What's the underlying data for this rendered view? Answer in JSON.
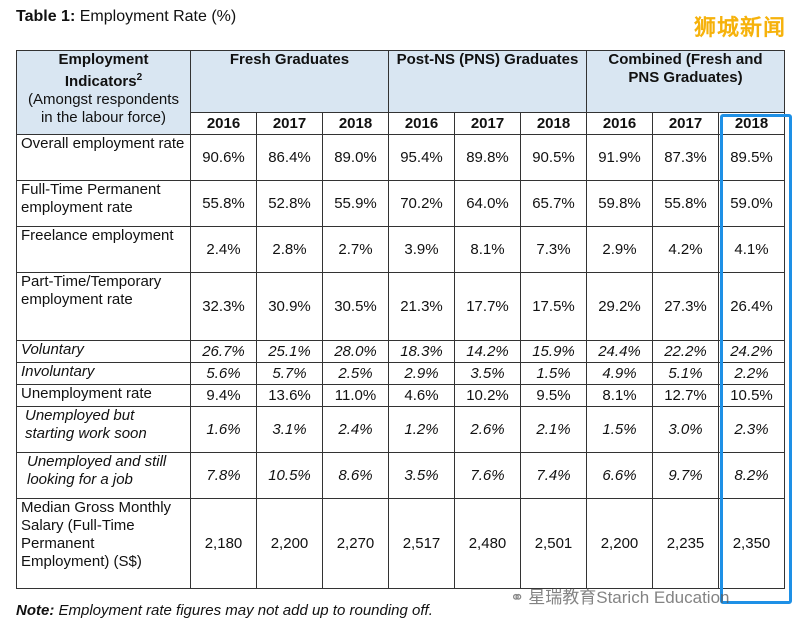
{
  "title": {
    "prefix": "Table 1:",
    "text": "Employment Rate (%)"
  },
  "watermark_top": "狮城新闻",
  "watermark_bottom": "星瑞教育Starich Education",
  "header": {
    "indicator_main": "Employment Indicators",
    "indicator_sup": "2",
    "indicator_sub": "(Amongst respondents in the labour force)",
    "groups": [
      "Fresh Graduates",
      "Post-NS (PNS) Graduates",
      "Combined (Fresh and PNS Graduates)"
    ],
    "years": [
      "2016",
      "2017",
      "2018",
      "2016",
      "2017",
      "2018",
      "2016",
      "2017",
      "2018"
    ]
  },
  "rows": [
    {
      "label": "Overall employment rate",
      "italic": false,
      "values": [
        "90.6%",
        "86.4%",
        "89.0%",
        "95.4%",
        "89.8%",
        "90.5%",
        "91.9%",
        "87.3%",
        "89.5%"
      ]
    },
    {
      "label": "Full-Time Permanent employment rate",
      "italic": false,
      "values": [
        "55.8%",
        "52.8%",
        "55.9%",
        "70.2%",
        "64.0%",
        "65.7%",
        "59.8%",
        "55.8%",
        "59.0%"
      ]
    },
    {
      "label": "Freelance employment",
      "italic": false,
      "values": [
        "2.4%",
        "2.8%",
        "2.7%",
        "3.9%",
        "8.1%",
        "7.3%",
        "2.9%",
        "4.2%",
        "4.1%"
      ]
    },
    {
      "label": "Part-Time/Temporary employment rate",
      "italic": false,
      "values": [
        "32.3%",
        "30.9%",
        "30.5%",
        "21.3%",
        "17.7%",
        "17.5%",
        "29.2%",
        "27.3%",
        "26.4%"
      ]
    },
    {
      "label": "Voluntary",
      "italic": true,
      "values": [
        "26.7%",
        "25.1%",
        "28.0%",
        "18.3%",
        "14.2%",
        "15.9%",
        "24.4%",
        "22.2%",
        "24.2%"
      ]
    },
    {
      "label": "Involuntary",
      "italic": true,
      "values": [
        "5.6%",
        "5.7%",
        "2.5%",
        "2.9%",
        "3.5%",
        "1.5%",
        "4.9%",
        "5.1%",
        "2.2%"
      ]
    },
    {
      "label": "Unemployment rate",
      "italic": false,
      "values": [
        "9.4%",
        "13.6%",
        "11.0%",
        "4.6%",
        "10.2%",
        "9.5%",
        "8.1%",
        "12.7%",
        "10.5%"
      ]
    },
    {
      "label": "Unemployed but starting work soon",
      "italic": true,
      "values": [
        "1.6%",
        "3.1%",
        "2.4%",
        "1.2%",
        "2.6%",
        "2.1%",
        "1.5%",
        "3.0%",
        "2.3%"
      ]
    },
    {
      "label": "Unemployed and still looking for a job",
      "italic": true,
      "values": [
        "7.8%",
        "10.5%",
        "8.6%",
        "3.5%",
        "7.6%",
        "7.4%",
        "6.6%",
        "9.7%",
        "8.2%"
      ]
    },
    {
      "label": "Median Gross Monthly Salary (Full-Time Permanent Employment) (S$)",
      "italic": false,
      "values": [
        "2,180",
        "2,200",
        "2,270",
        "2,517",
        "2,480",
        "2,501",
        "2,200",
        "2,235",
        "2,350"
      ]
    }
  ],
  "note": {
    "prefix": "Note:",
    "text": "Employment rate figures may not add up to rounding off."
  }
}
